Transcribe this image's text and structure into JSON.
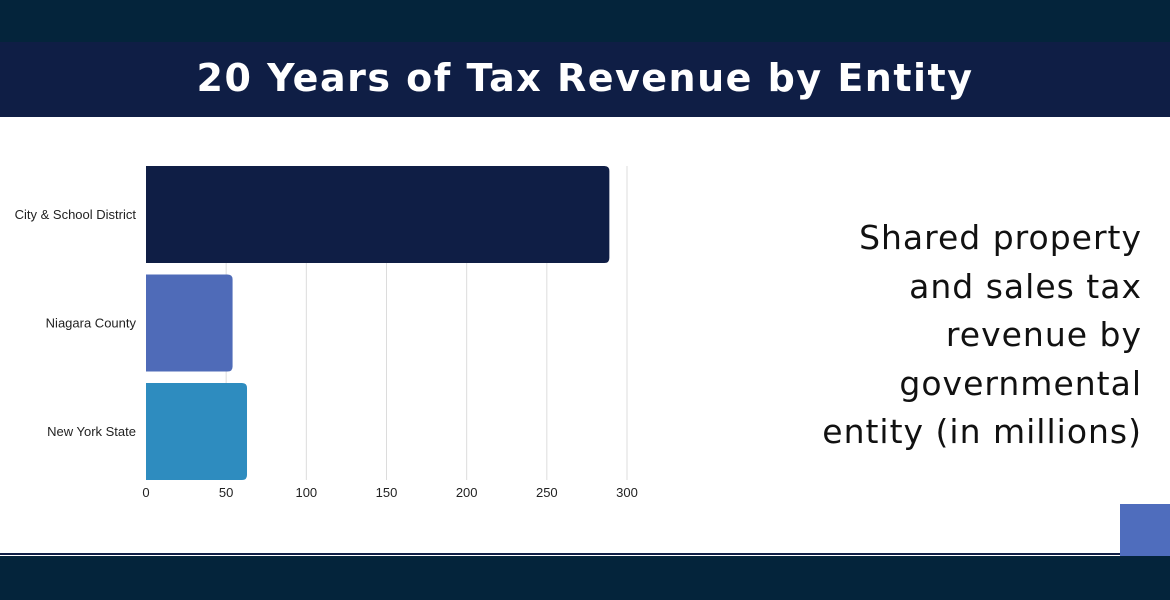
{
  "header": {
    "title": "20 Years of Tax Revenue by Entity"
  },
  "caption": {
    "text": "Shared property\nand sales tax\nrevenue by\ngovernmental\nentity (in millions)"
  },
  "colors": {
    "top_band": "#04243b",
    "title_bar": "#0f1e45",
    "accent_square": "#4f6dbd"
  },
  "chart_data": {
    "type": "bar",
    "orientation": "horizontal",
    "categories": [
      "City & School District",
      "Niagara County",
      "New York State"
    ],
    "values": [
      289,
      54,
      63
    ],
    "colors": [
      "#0f1e45",
      "#4f6bb8",
      "#2e8cbf"
    ],
    "xlim": [
      0,
      300
    ],
    "xticks": [
      0,
      50,
      100,
      150,
      200,
      250,
      300
    ],
    "grid": true,
    "legend": "none"
  }
}
